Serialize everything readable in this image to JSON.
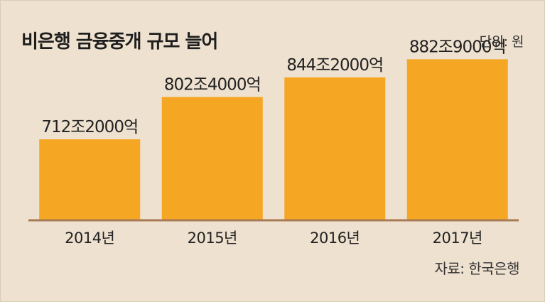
{
  "chart_data": {
    "type": "bar",
    "title": "비은행 금융중개 규모 늘어",
    "unit": "단위: 원",
    "source": "자료: 한국은행",
    "categories": [
      "2014년",
      "2015년",
      "2016년",
      "2017년"
    ],
    "values": [
      712.2,
      802.4,
      844.2,
      882.9
    ],
    "data_labels": [
      "712조2000억",
      "802조4000억",
      "844조2000억",
      "882조9000억"
    ],
    "colors": {
      "bar": "#f5a623",
      "baseline": "#a87a56",
      "background": "#eee1cf"
    },
    "grid": false,
    "legend": "none"
  }
}
